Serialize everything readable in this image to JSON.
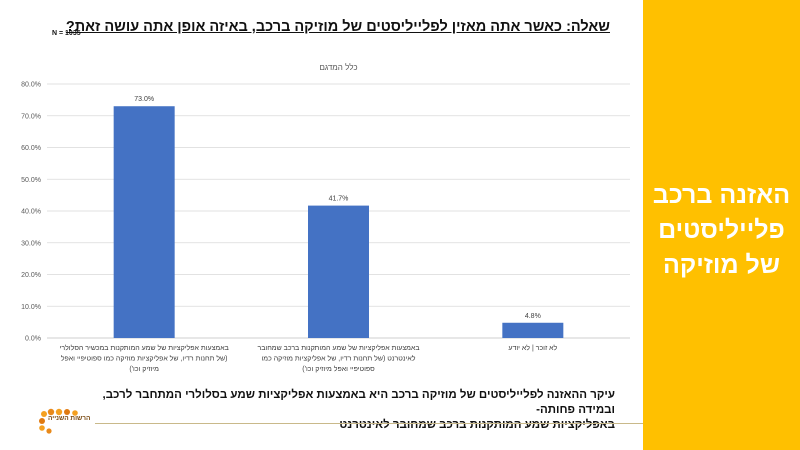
{
  "sidebar": {
    "title_lines": [
      "האזנה ברכב",
      "פלייליסטים",
      "של מוזיקה"
    ],
    "color": "#FFC000"
  },
  "header": {
    "question": "שאלה: כאשר אתה מאזין לפלייליסטים של מוזיקה ברכב, באיזה אופן אתה עושה זאת?",
    "sample_size": "N = 1035"
  },
  "chart_data": {
    "type": "bar",
    "title": "כלל המדגם",
    "categories": [
      "באמצעות אפליקציות של שמע המותקנות במכשיר הסלולרי (של תחנות רדיו, של אפליקציות מוזיקה כמו ספוטיפיי ואפל מיוזיק וכו')",
      "באמצעות אפליקציות של שמע המותקנות ברכב שמחובר לאינטרנט (של תחנות רדיו, של אפליקציות מוזיקה כמו ספוטיפיי ואפל מיוזיק וכו')",
      "לא זוכר | לא יודע"
    ],
    "category_lines": [
      [
        "באמצעות אפליקציות של שמע המותקנות במכשיר הסלולרי",
        "(של תחנות רדיו, של אפליקציות מוזיקה כמו ספוטיפיי ואפל",
        "מיוזיק וכו')"
      ],
      [
        "באמצעות אפליקציות של שמע המותקנות ברכב שמחובר",
        "לאינטרנט (של תחנות רדיו, של אפליקציות מוזיקה כמו",
        "ספוטיפיי ואפל מיוזיק וכו')"
      ],
      [
        "לא זוכר | לא יודע"
      ]
    ],
    "values": [
      73.0,
      41.7,
      4.8
    ],
    "data_labels": [
      "73.0%",
      "41.7%",
      "4.8%"
    ],
    "ylim": [
      0,
      80
    ],
    "yticks": [
      "0.0%",
      "10.0%",
      "20.0%",
      "30.0%",
      "40.0%",
      "50.0%",
      "60.0%",
      "70.0%",
      "80.0%"
    ],
    "grid": true,
    "bar_color": "#4472C4"
  },
  "conclusion": {
    "lines": [
      "עיקר ההאזנה לפלייליסטים של מוזיקה ברכב היא באמצעות אפליקציות שמע בסלולרי המתחבר לרכב, ובמידה פחותה-",
      "באפליקציות שמע המותקנות ברכב שמחובר לאינטרנט"
    ]
  },
  "logo": {
    "text": "הרשות השנייה"
  }
}
